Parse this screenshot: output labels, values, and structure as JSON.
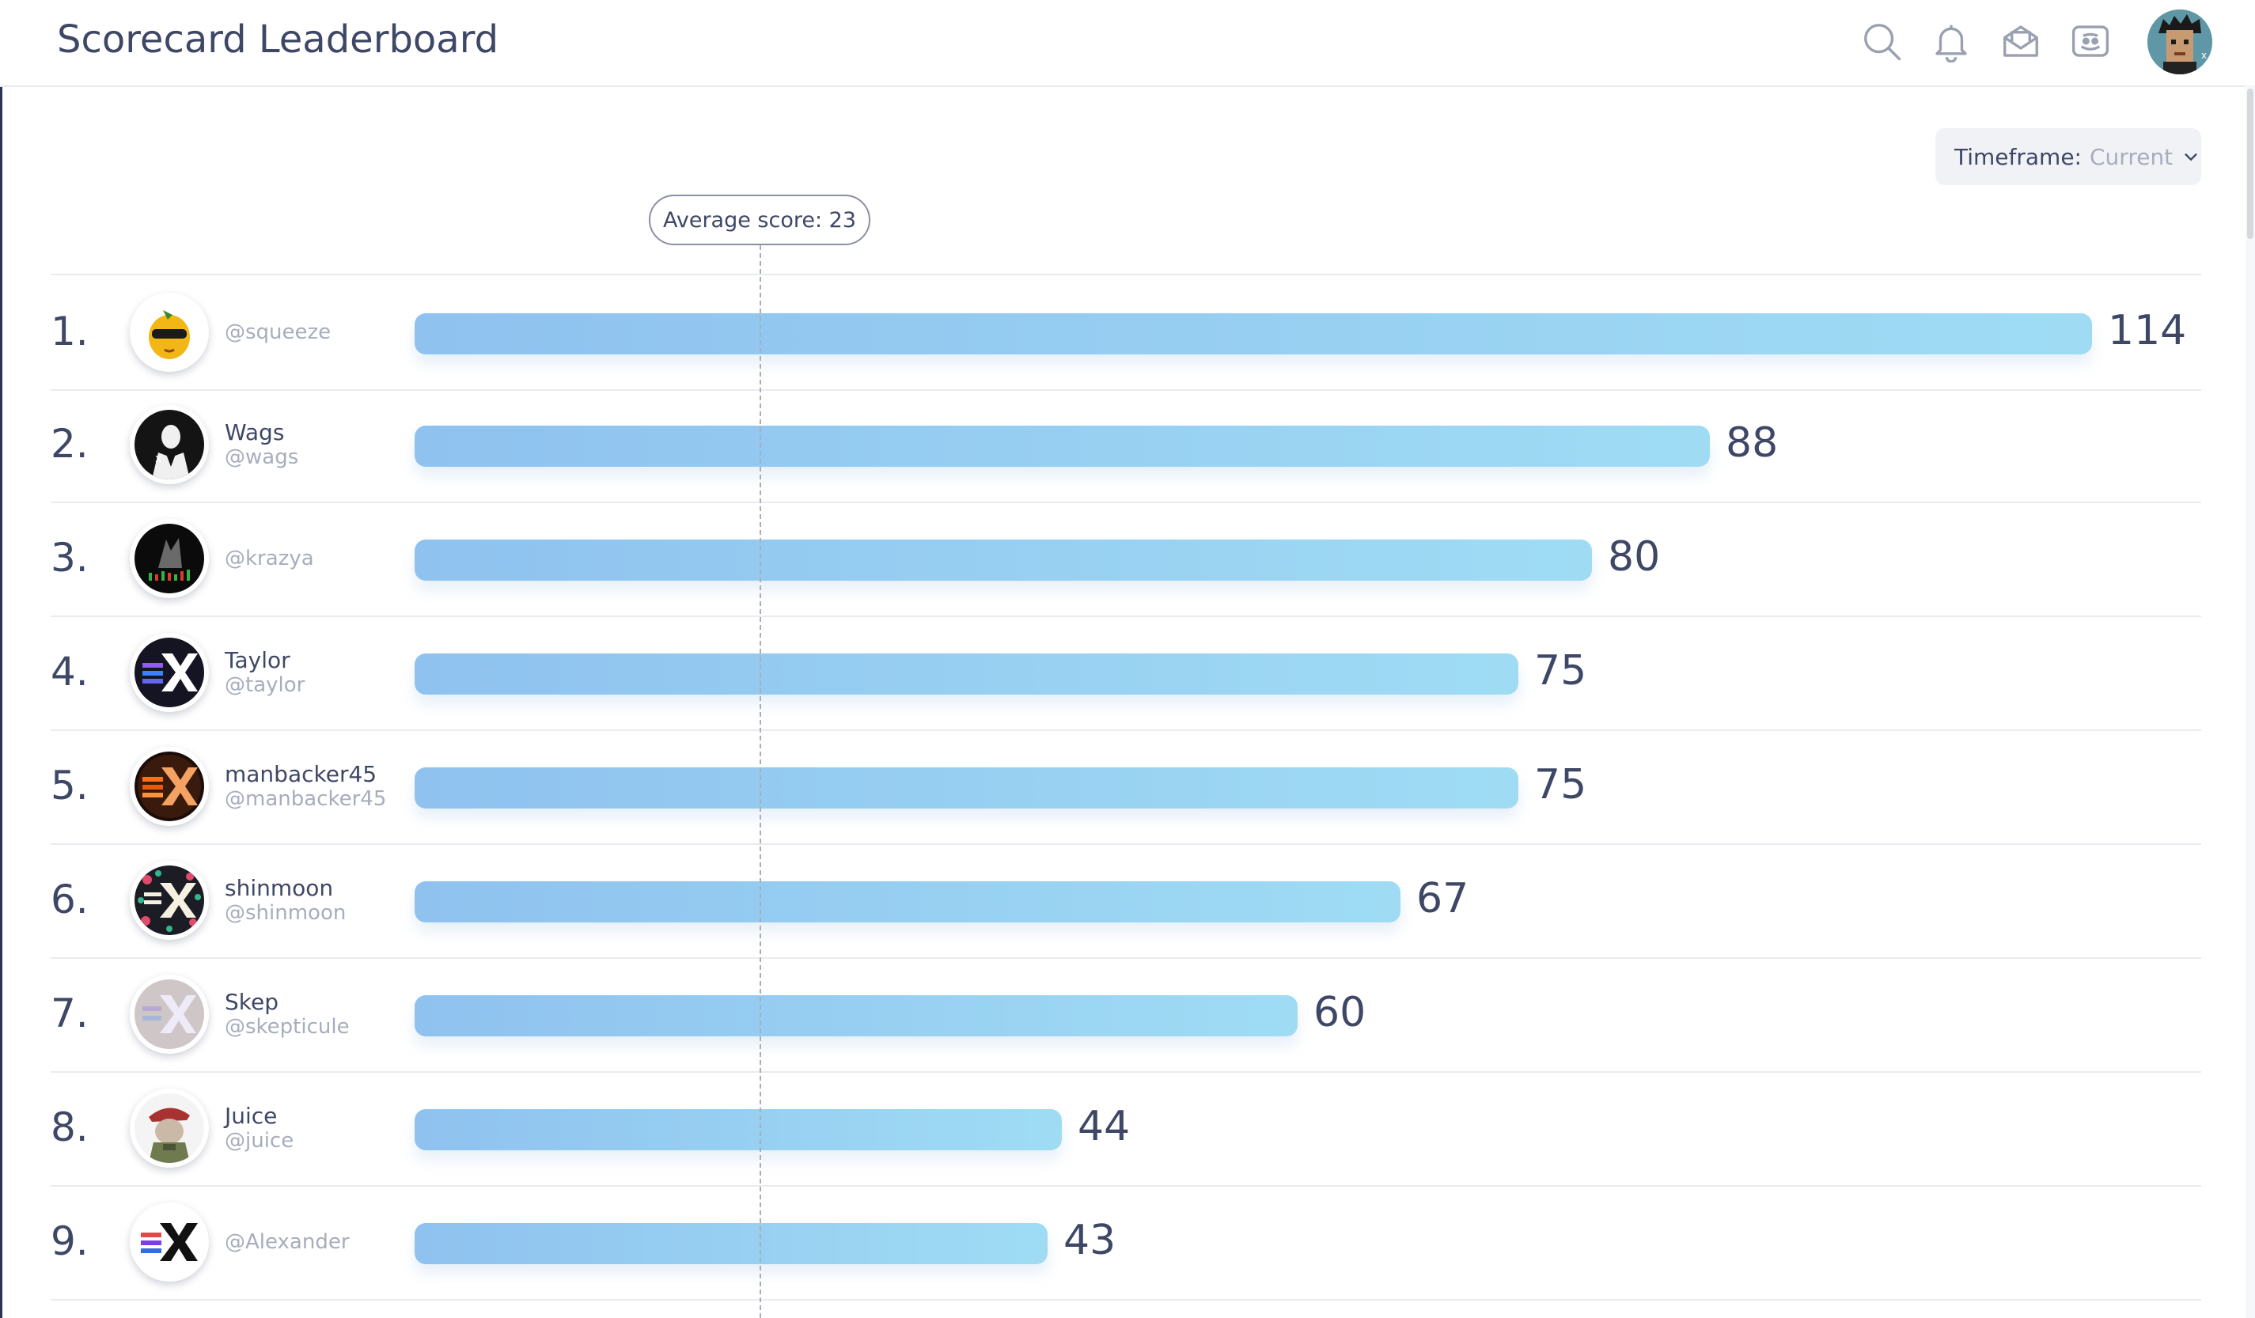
{
  "header": {
    "title": "Scorecard Leaderboard"
  },
  "filters": {
    "timeframe_label": "Timeframe:",
    "timeframe_value": "Current"
  },
  "chart": {
    "average_label": "Average score: 23",
    "average_value": 23
  },
  "leaderboard": [
    {
      "rank": "1.",
      "name": "",
      "handle": "@squeeze",
      "score": 114
    },
    {
      "rank": "2.",
      "name": "Wags",
      "handle": "@wags",
      "score": 88
    },
    {
      "rank": "3.",
      "name": "",
      "handle": "@krazya",
      "score": 80
    },
    {
      "rank": "4.",
      "name": "Taylor",
      "handle": "@taylor",
      "score": 75
    },
    {
      "rank": "5.",
      "name": "manbacker45",
      "handle": "@manbacker45",
      "score": 75
    },
    {
      "rank": "6.",
      "name": "shinmoon",
      "handle": "@shinmoon",
      "score": 67
    },
    {
      "rank": "7.",
      "name": "Skep",
      "handle": "@skepticule",
      "score": 60
    },
    {
      "rank": "8.",
      "name": "Juice",
      "handle": "@juice",
      "score": 44
    },
    {
      "rank": "9.",
      "name": "",
      "handle": "@Alexander",
      "score": 43
    }
  ],
  "icons": {
    "header": [
      "search-icon",
      "bell-icon",
      "envelope-icon",
      "discord-icon"
    ],
    "avatars": [
      "lemon-sunglasses-avatar",
      "suited-man-avatar",
      "wolf-chart-avatar",
      "x-logo-avatar",
      "x-logo-orange-avatar",
      "x-logo-floral-avatar",
      "x-logo-pastel-avatar",
      "beret-soldier-avatar",
      "x-logo-dark-avatar"
    ]
  },
  "colors": {
    "bar_start": "#8fc2ef",
    "bar_end": "#9fdcf4",
    "text": "#3e4766",
    "muted": "#a7adbd"
  }
}
